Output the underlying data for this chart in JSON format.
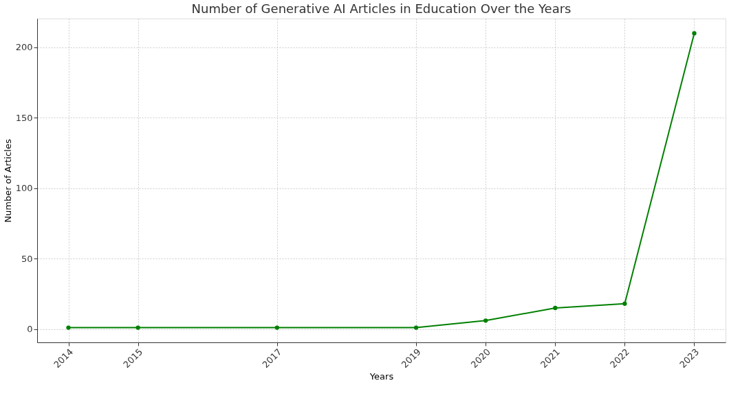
{
  "chart_data": {
    "type": "line",
    "title": "Number of Generative AI Articles in Education Over the Years",
    "xlabel": "Years",
    "ylabel": "Number of Articles",
    "x": [
      2014,
      2015,
      2017,
      2019,
      2020,
      2021,
      2022,
      2023
    ],
    "series": [
      {
        "color": "#008000",
        "values": [
          1,
          1,
          1,
          1,
          6,
          15,
          18,
          210
        ]
      }
    ],
    "xlim": [
      2013.55,
      2023.45
    ],
    "xticks": [
      2014,
      2015,
      2017,
      2019,
      2020,
      2021,
      2022,
      2023
    ],
    "ylim": [
      -9.45,
      220.45
    ],
    "yticks": [
      0,
      50,
      100,
      150,
      200
    ],
    "grid": true,
    "marker": "circle",
    "line_style": "solid"
  }
}
